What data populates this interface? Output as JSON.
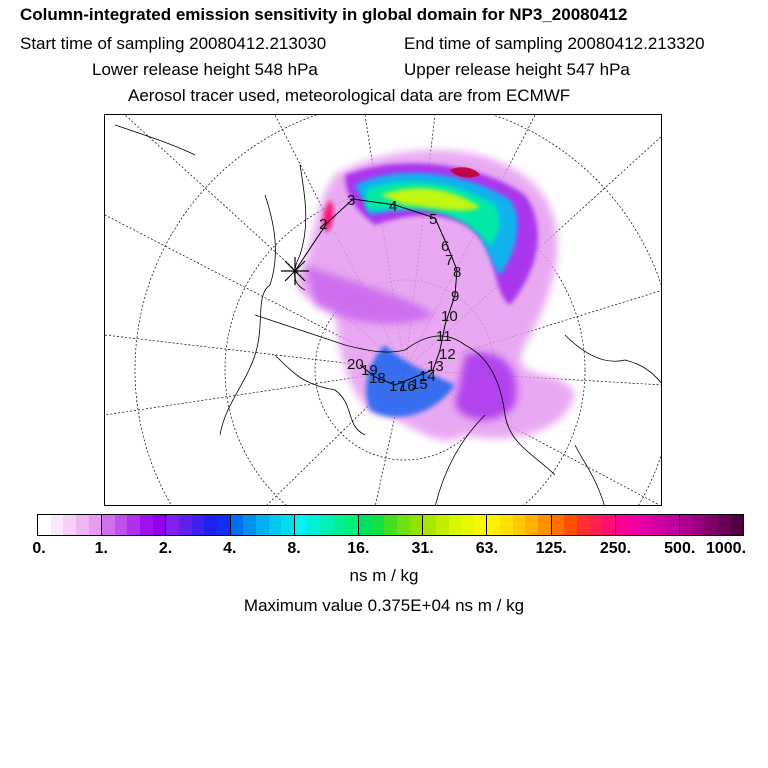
{
  "header": {
    "title": "Column-integrated emission sensitivity in global domain for NP3_20080412",
    "start_time": "Start time of sampling 20080412.213030",
    "end_time": "End time of sampling 20080412.213320",
    "lower_release": "Lower release height  548 hPa",
    "upper_release": "Upper release height  547 hPa",
    "tracer_info": "Aerosol tracer used, meteorological data are from ECMWF"
  },
  "map": {
    "projection": "polar stereographic",
    "day_markers": [
      "2",
      "3",
      "4",
      "5",
      "6",
      "7",
      "8",
      "9",
      "10",
      "11",
      "12",
      "13",
      "14",
      "15",
      "16",
      "17",
      "18",
      "19",
      "20"
    ],
    "release_marker": "release-cross"
  },
  "colorbar": {
    "tick_labels": [
      "0.",
      "1.",
      "2.",
      "4.",
      "8.",
      "16.",
      "31.",
      "63.",
      "125.",
      "250.",
      "500.",
      "1000."
    ],
    "colors": [
      "#ffffff",
      "#fbe8fb",
      "#f6d0f6",
      "#efb4f2",
      "#e69bf0",
      "#d070ee",
      "#c050ee",
      "#b030ee",
      "#a010ee",
      "#9000ee",
      "#8020ee",
      "#6020f0",
      "#4020f0",
      "#2020f0",
      "#1030f0",
      "#0070f0",
      "#0090f0",
      "#00b0f0",
      "#00c8f0",
      "#00dcf0",
      "#00f4f4",
      "#00f0d8",
      "#00f0b8",
      "#00f098",
      "#00f078",
      "#00e060",
      "#10e040",
      "#40e020",
      "#70e010",
      "#90e000",
      "#a8e800",
      "#c0f000",
      "#d8f800",
      "#e8f800",
      "#f8f800",
      "#fff000",
      "#ffe000",
      "#ffc800",
      "#ffb000",
      "#ff9000",
      "#ff7000",
      "#ff5000",
      "#ff3030",
      "#ff2050",
      "#ff1070",
      "#ff0090",
      "#f000a0",
      "#e000a8",
      "#d000a0",
      "#c000a0",
      "#b00090",
      "#980080",
      "#800068",
      "#680058",
      "#500040"
    ],
    "units": "ns m / kg",
    "maximum": "Maximum value  0.375E+04 ns m / kg"
  }
}
